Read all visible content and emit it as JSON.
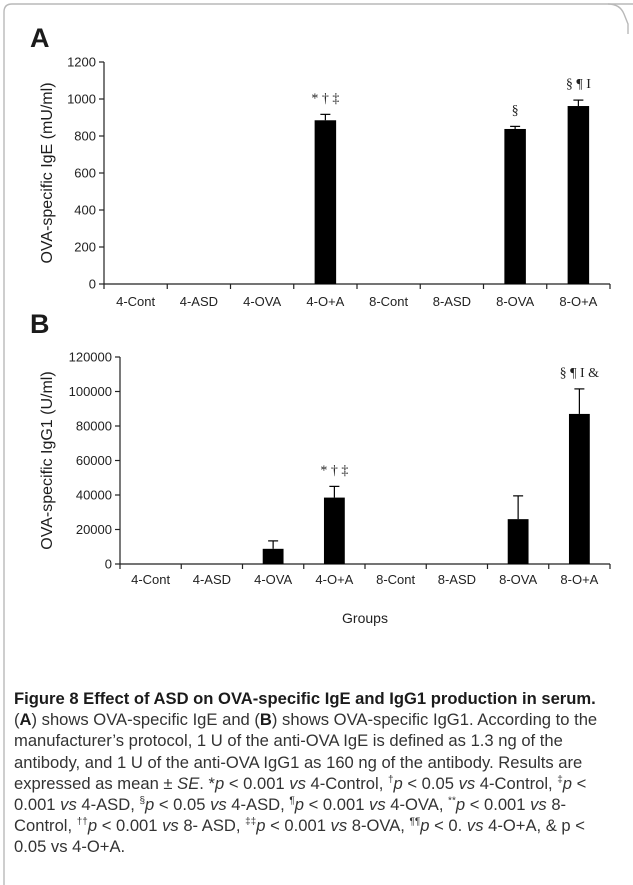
{
  "chart_data": [
    {
      "type": "bar",
      "panel": "A",
      "ylabel": "OVA-specific IgE (mU/ml)",
      "categories": [
        "4-Cont",
        "4-ASD",
        "4-OVA",
        "4-O+A",
        "8-Cont",
        "8-ASD",
        "8-OVA",
        "8-O+A"
      ],
      "values": [
        0,
        0,
        0,
        885,
        0,
        0,
        838,
        962
      ],
      "errors": [
        0,
        0,
        0,
        32,
        0,
        0,
        14,
        32
      ],
      "significance": [
        "",
        "",
        "",
        "* † ‡",
        "",
        "",
        "§",
        "§ ¶ I"
      ],
      "ylim": [
        0,
        1200
      ],
      "yticks": [
        "0",
        "200",
        "400",
        "600",
        "800",
        "1000",
        "1200"
      ],
      "grid": false,
      "bar_color": "#000000"
    },
    {
      "type": "bar",
      "panel": "B",
      "ylabel": "OVA-specific IgG1 (U/ml)",
      "xlabel": "Groups",
      "categories": [
        "4-Cont",
        "4-ASD",
        "4-OVA",
        "4-O+A",
        "8-Cont",
        "8-ASD",
        "8-OVA",
        "8-O+A"
      ],
      "values": [
        0,
        0,
        8800,
        38500,
        0,
        0,
        26000,
        87000
      ],
      "errors": [
        0,
        0,
        4600,
        6500,
        0,
        0,
        13500,
        14500
      ],
      "significance": [
        "",
        "",
        "",
        "* † ‡",
        "",
        "",
        "",
        "§ ¶ I &"
      ],
      "ylim": [
        0,
        120000
      ],
      "yticks": [
        "0",
        "20000",
        "40000",
        "60000",
        "80000",
        "100000",
        "120000"
      ],
      "grid": false,
      "bar_color": "#000000"
    }
  ],
  "caption": {
    "title": "Figure 8 Effect of ASD on OVA-specific IgE and IgG1 production in serum.",
    "p1_open": " (",
    "p1_letter_a": "A",
    "p1_mid": ") shows OVA-specific IgE and (",
    "p1_letter_b": "B",
    "p1_tail": ") shows OVA-specific IgG1. According to the manufacturer’s protocol, 1 U of the anti-OVA IgE is defined as 1.3 ng of the antibody, and 1 U of the anti-OVA IgG1 as 160 ng of the antibody. Results are expressed as mean ± ",
    "se": "SE",
    "s1": ". *",
    "p": "p",
    "vs": "vs",
    "s2": " < 0.001 ",
    "s3": " 4-Control, ",
    "sup_dagger": "†",
    "s4": " < 0.05 ",
    "s5": " 4-Control, ",
    "sup_ddagger": "‡",
    "s6": " < 0.001 ",
    "s7": " 4-ASD, ",
    "sup_section": "§",
    "s8": " < 0.05 ",
    "s9": " 4-ASD, ",
    "sup_pilcrow": "¶",
    "s10": " < 0.001 ",
    "s11": " 4-OVA, ",
    "sup_2star": "**",
    "s12": " < 0.001 ",
    "s13": " 8- Control, ",
    "sup_2dagger": "††",
    "s14": " < 0.001 ",
    "s15": " 8- ASD, ",
    "sup_2ddagger": "‡‡",
    "s16": " < 0.001 ",
    "s17": " 8-OVA, ",
    "sup_2pilcrow": "¶¶",
    "s18": " < 0. ",
    "s19": " 4-O+A, & p < 0.05 vs 4-O+A."
  }
}
